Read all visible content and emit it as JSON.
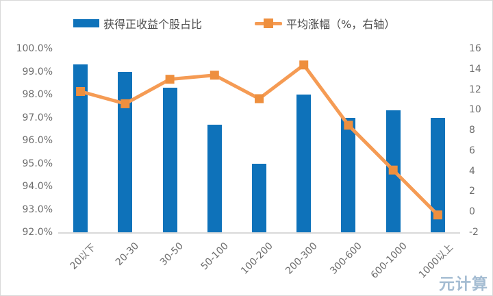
{
  "watermark": "元计算",
  "colors": {
    "bar": "#0e72ba",
    "line": "#f59b54",
    "marker": "#ee8f3e",
    "axis_text": "#6e6e6e",
    "legend_text": "#4d4d4d",
    "axis_line": "#d9d9d9",
    "watermark": "#a4bcd2"
  },
  "chart_data": {
    "type": "bar+line combo",
    "categories": [
      "20以下",
      "20-30",
      "30-50",
      "50-100",
      "100-200",
      "200-300",
      "300-600",
      "600-1000",
      "1000以上"
    ],
    "series": [
      {
        "name": "获得正收益个股占比",
        "type": "bar",
        "axis": "left",
        "values": [
          99.3,
          99.0,
          98.3,
          96.7,
          95.0,
          98.0,
          97.0,
          97.3,
          97.0
        ]
      },
      {
        "name": "平均涨幅（%，右轴）",
        "type": "line",
        "axis": "right",
        "values": [
          11.8,
          10.6,
          13.0,
          13.4,
          11.1,
          14.4,
          8.5,
          4.1,
          -0.3
        ]
      }
    ],
    "left_axis": {
      "min": 92,
      "max": 100,
      "step": 1,
      "ticks": [
        "100.0%",
        "99.0%",
        "98.0%",
        "97.0%",
        "96.0%",
        "95.0%",
        "94.0%",
        "93.0%",
        "92.0%"
      ]
    },
    "right_axis": {
      "min": -2,
      "max": 16,
      "step": 2,
      "ticks": [
        "16",
        "14",
        "12",
        "10",
        "8",
        "6",
        "4",
        "2",
        "0",
        "-2"
      ]
    },
    "grid": false,
    "legend_position": "top"
  }
}
